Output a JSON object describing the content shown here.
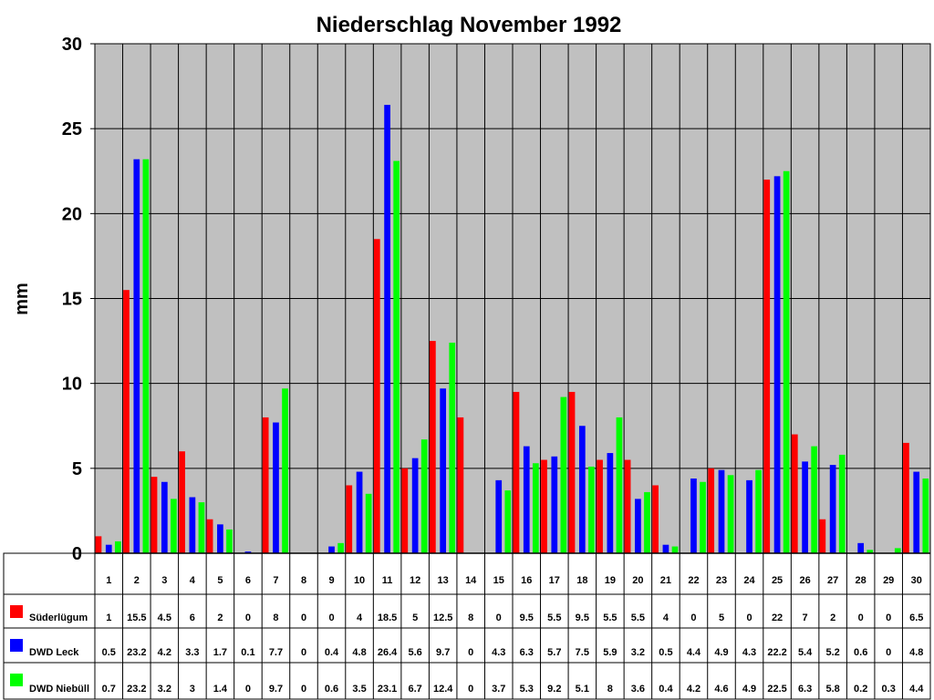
{
  "chart_data": {
    "type": "bar",
    "title": "Niederschlag November 1992",
    "ylabel": "mm",
    "xlabel": "",
    "ylim": [
      0,
      30
    ],
    "yticks": [
      0,
      5,
      10,
      15,
      20,
      25,
      30
    ],
    "grid": true,
    "legend_placement": "data-table-left",
    "background_color": "#c0c0c0",
    "categories": [
      "1",
      "2",
      "3",
      "4",
      "5",
      "6",
      "7",
      "8",
      "9",
      "10",
      "11",
      "12",
      "13",
      "14",
      "15",
      "16",
      "17",
      "18",
      "19",
      "20",
      "21",
      "22",
      "23",
      "24",
      "25",
      "26",
      "27",
      "28",
      "29",
      "30"
    ],
    "series": [
      {
        "name": "Süderlügum",
        "color": "#ff0000",
        "values": [
          1,
          15.5,
          4.5,
          6,
          2,
          0,
          8,
          0,
          0,
          4,
          18.5,
          5,
          12.5,
          8,
          0,
          9.5,
          5.5,
          9.5,
          5.5,
          5.5,
          4,
          0,
          5,
          0,
          22,
          7,
          2,
          0,
          0,
          6.5
        ]
      },
      {
        "name": "DWD Leck",
        "color": "#0000ff",
        "values": [
          0.5,
          23.2,
          4.2,
          3.3,
          1.7,
          0.1,
          7.7,
          0,
          0.4,
          4.8,
          26.4,
          5.6,
          9.7,
          0,
          4.3,
          6.3,
          5.7,
          7.5,
          5.9,
          3.2,
          0.5,
          4.4,
          4.9,
          4.3,
          22.2,
          5.4,
          5.2,
          0.6,
          0,
          4.8
        ]
      },
      {
        "name": "DWD Niebüll",
        "color": "#00ff00",
        "values": [
          0.7,
          23.2,
          3.2,
          3,
          1.4,
          0,
          9.7,
          0,
          0.6,
          3.5,
          23.1,
          6.7,
          12.4,
          0,
          3.7,
          5.3,
          9.2,
          5.1,
          8,
          3.6,
          0.4,
          4.2,
          4.6,
          4.9,
          22.5,
          6.3,
          5.8,
          0.2,
          0.3,
          4.4
        ]
      }
    ]
  }
}
